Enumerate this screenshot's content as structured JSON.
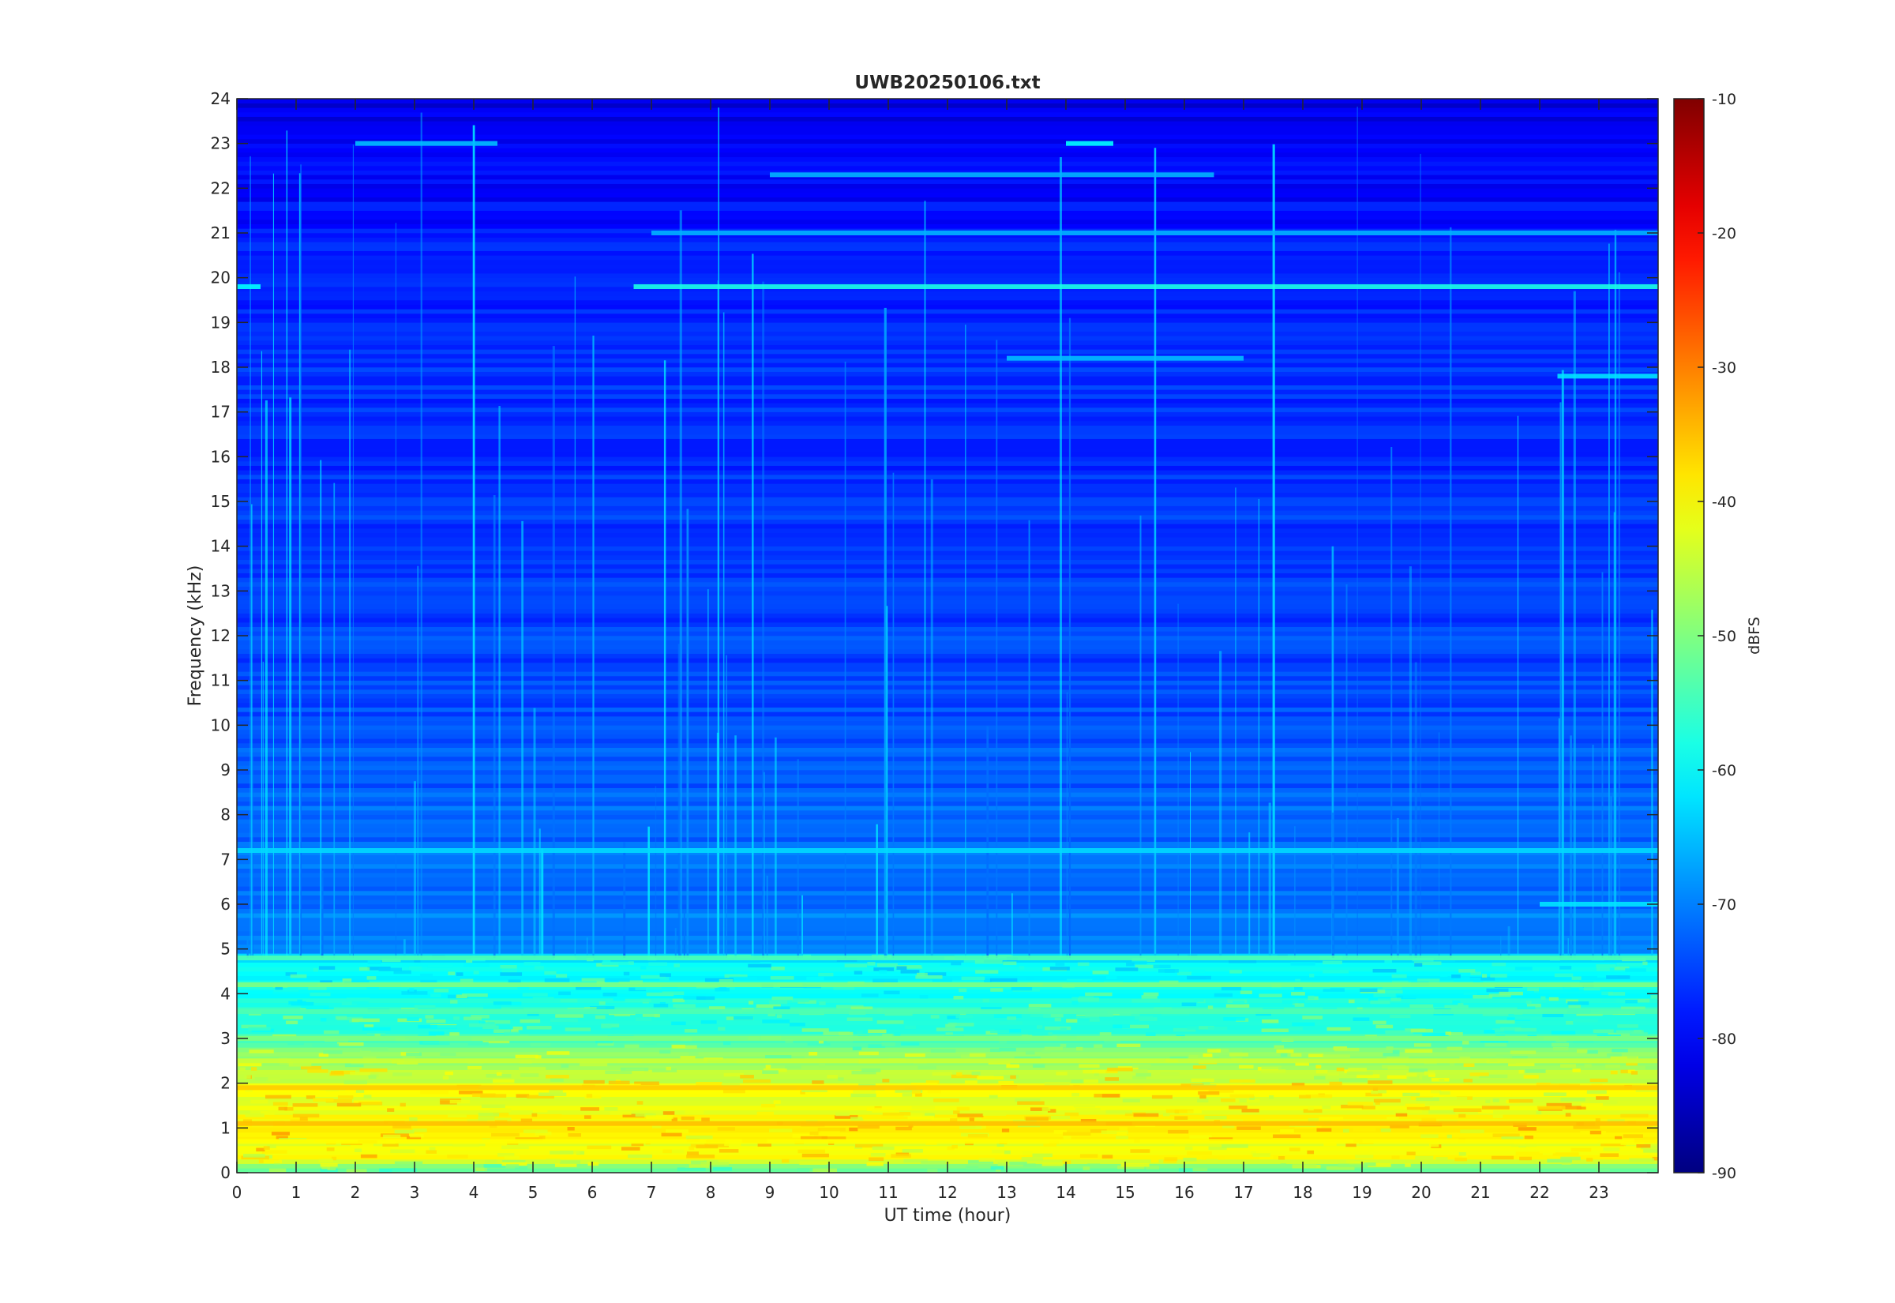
{
  "chart_data": {
    "type": "heatmap",
    "title": "UWB20250106.txt",
    "xlabel": "UT time (hour)",
    "ylabel": "Frequency (kHz)",
    "xlim": [
      0,
      24
    ],
    "ylim": [
      0,
      24
    ],
    "x_ticks": [
      0,
      1,
      2,
      3,
      4,
      5,
      6,
      7,
      8,
      9,
      10,
      11,
      12,
      13,
      14,
      15,
      16,
      17,
      18,
      19,
      20,
      21,
      22,
      23
    ],
    "y_ticks": [
      0,
      1,
      2,
      3,
      4,
      5,
      6,
      7,
      8,
      9,
      10,
      11,
      12,
      13,
      14,
      15,
      16,
      17,
      18,
      19,
      20,
      21,
      22,
      23,
      24
    ],
    "colorbar": {
      "label": "dBFS",
      "range": [
        -90,
        -10
      ],
      "ticks": [
        -90,
        -80,
        -70,
        -60,
        -50,
        -40,
        -30,
        -20,
        -10
      ],
      "colormap": "jet"
    },
    "grid": false,
    "level_profile_dBFS": [
      {
        "freq_khz": 0.0,
        "level": -55
      },
      {
        "freq_khz": 0.3,
        "level": -42
      },
      {
        "freq_khz": 1.0,
        "level": -40
      },
      {
        "freq_khz": 1.9,
        "level": -42
      },
      {
        "freq_khz": 2.5,
        "level": -48
      },
      {
        "freq_khz": 3.0,
        "level": -55
      },
      {
        "freq_khz": 4.0,
        "level": -59
      },
      {
        "freq_khz": 4.8,
        "level": -61
      },
      {
        "freq_khz": 5.0,
        "level": -70
      },
      {
        "freq_khz": 7.0,
        "level": -71
      },
      {
        "freq_khz": 10.0,
        "level": -74
      },
      {
        "freq_khz": 15.0,
        "level": -76
      },
      {
        "freq_khz": 20.0,
        "level": -77
      },
      {
        "freq_khz": 22.0,
        "level": -80
      },
      {
        "freq_khz": 24.0,
        "level": -82
      }
    ],
    "tones": [
      {
        "freq_khz": 19.8,
        "start_hour": 6.7,
        "end_hour": 24.0,
        "level": -58
      },
      {
        "freq_khz": 19.8,
        "start_hour": 0.0,
        "end_hour": 0.4,
        "level": -60
      },
      {
        "freq_khz": 18.2,
        "start_hour": 13.0,
        "end_hour": 17.0,
        "level": -65
      },
      {
        "freq_khz": 17.8,
        "start_hour": 22.3,
        "end_hour": 24.0,
        "level": -62
      },
      {
        "freq_khz": 21.0,
        "start_hour": 7.0,
        "end_hour": 24.0,
        "level": -66
      },
      {
        "freq_khz": 22.3,
        "start_hour": 9.0,
        "end_hour": 16.5,
        "level": -66
      },
      {
        "freq_khz": 23.0,
        "start_hour": 2.0,
        "end_hour": 4.4,
        "level": -65
      },
      {
        "freq_khz": 23.0,
        "start_hour": 14.0,
        "end_hour": 14.8,
        "level": -60
      },
      {
        "freq_khz": 7.2,
        "start_hour": 0.0,
        "end_hour": 24.0,
        "level": -63
      },
      {
        "freq_khz": 6.0,
        "start_hour": 22.0,
        "end_hour": 24.0,
        "level": -62
      },
      {
        "freq_khz": 4.8,
        "start_hour": 0.0,
        "end_hour": 24.0,
        "level": -54
      },
      {
        "freq_khz": 4.2,
        "start_hour": 0.0,
        "end_hour": 24.0,
        "level": -50
      },
      {
        "freq_khz": 3.6,
        "start_hour": 0.0,
        "end_hour": 24.0,
        "level": -54
      },
      {
        "freq_khz": 3.0,
        "start_hour": 0.0,
        "end_hour": 24.0,
        "level": -50
      },
      {
        "freq_khz": 2.5,
        "start_hour": 0.0,
        "end_hour": 24.0,
        "level": -44
      },
      {
        "freq_khz": 1.9,
        "start_hour": 0.0,
        "end_hour": 24.0,
        "level": -36
      },
      {
        "freq_khz": 1.1,
        "start_hour": 0.0,
        "end_hour": 24.0,
        "level": -35
      },
      {
        "freq_khz": 0.7,
        "start_hour": 0.0,
        "end_hour": 24.0,
        "level": -40
      }
    ]
  }
}
